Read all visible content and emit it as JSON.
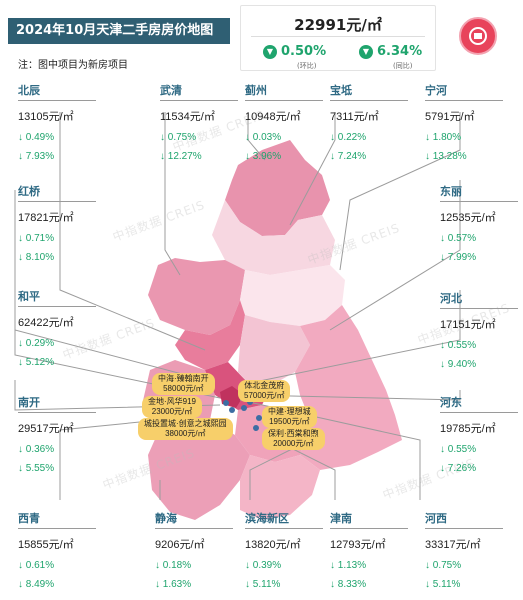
{
  "header": {
    "title": "2024年10月天津二手房房价地图",
    "note": "注：图中项目为新房项目",
    "overall_price": "22991元/㎡",
    "mom_change": "0.50%",
    "mom_label": "(环比)",
    "yoy_change": "6.34%",
    "yoy_label": "(同比)"
  },
  "colors": {
    "title_bg": "#2f5f73",
    "decline_green": "#1fa46d",
    "district_name": "#2f6a84",
    "project_tag": "#f7cf6a",
    "logo_red": "#e8435b"
  },
  "districts": [
    {
      "key": "beichen",
      "name": "北辰",
      "price": "13105元/㎡",
      "mom": "↓ 0.49%",
      "yoy": "↓ 7.93%"
    },
    {
      "key": "wuqing",
      "name": "武清",
      "price": "11534元/㎡",
      "mom": "↓ 0.75%",
      "yoy": "↓ 12.27%"
    },
    {
      "key": "jizhou",
      "name": "蓟州",
      "price": "10948元/㎡",
      "mom": "↓ 0.03%",
      "yoy": "↓ 3.96%"
    },
    {
      "key": "baodi",
      "name": "宝坻",
      "price": "7311元/㎡",
      "mom": "↓ 0.22%",
      "yoy": "↓ 7.24%"
    },
    {
      "key": "ninghe",
      "name": "宁河",
      "price": "5791元/㎡",
      "mom": "↓ 1.80%",
      "yoy": "↓ 13.28%"
    },
    {
      "key": "hongqiao",
      "name": "红桥",
      "price": "17821元/㎡",
      "mom": "↓ 0.71%",
      "yoy": "↓ 8.10%"
    },
    {
      "key": "dongli",
      "name": "东丽",
      "price": "12535元/㎡",
      "mom": "↓ 0.57%",
      "yoy": "↓ 7.99%"
    },
    {
      "key": "heping",
      "name": "和平",
      "price": "62422元/㎡",
      "mom": "↓ 0.29%",
      "yoy": "↓ 5.12%"
    },
    {
      "key": "hebei",
      "name": "河北",
      "price": "17151元/㎡",
      "mom": "↓ 0.55%",
      "yoy": "↓ 9.40%"
    },
    {
      "key": "nankai",
      "name": "南开",
      "price": "29517元/㎡",
      "mom": "↓ 0.36%",
      "yoy": "↓ 5.55%"
    },
    {
      "key": "hedong",
      "name": "河东",
      "price": "19785元/㎡",
      "mom": "↓ 0.55%",
      "yoy": "↓ 7.26%"
    },
    {
      "key": "xiqing",
      "name": "西青",
      "price": "15855元/㎡",
      "mom": "↓ 0.61%",
      "yoy": "↓ 8.49%"
    },
    {
      "key": "jinghai",
      "name": "静海",
      "price": "9206元/㎡",
      "mom": "↓ 0.18%",
      "yoy": "↓ 1.63%"
    },
    {
      "key": "binhai",
      "name": "滨海新区",
      "price": "13820元/㎡",
      "mom": "↓ 0.39%",
      "yoy": "↓ 5.11%"
    },
    {
      "key": "jinnan",
      "name": "津南",
      "price": "12793元/㎡",
      "mom": "↓ 1.13%",
      "yoy": "↓ 8.33%"
    },
    {
      "key": "hexi",
      "name": "河西",
      "price": "33317元/㎡",
      "mom": "↓ 0.75%",
      "yoy": "↓ 5.11%"
    }
  ],
  "projects": [
    {
      "name": "中海·臻翰南开",
      "price": "58000元/㎡"
    },
    {
      "name": "金地·风华919",
      "price": "23000元/㎡"
    },
    {
      "name": "城投置城·创意之城熙园",
      "price": "38000元/㎡"
    },
    {
      "name": "体北金茂府",
      "price": "57000元/㎡"
    },
    {
      "name": "中建·理想城",
      "price": "19500元/㎡"
    },
    {
      "name": "保利·西棠和煦",
      "price": "20000元/㎡"
    }
  ],
  "watermark": "中指数据 CREIS"
}
